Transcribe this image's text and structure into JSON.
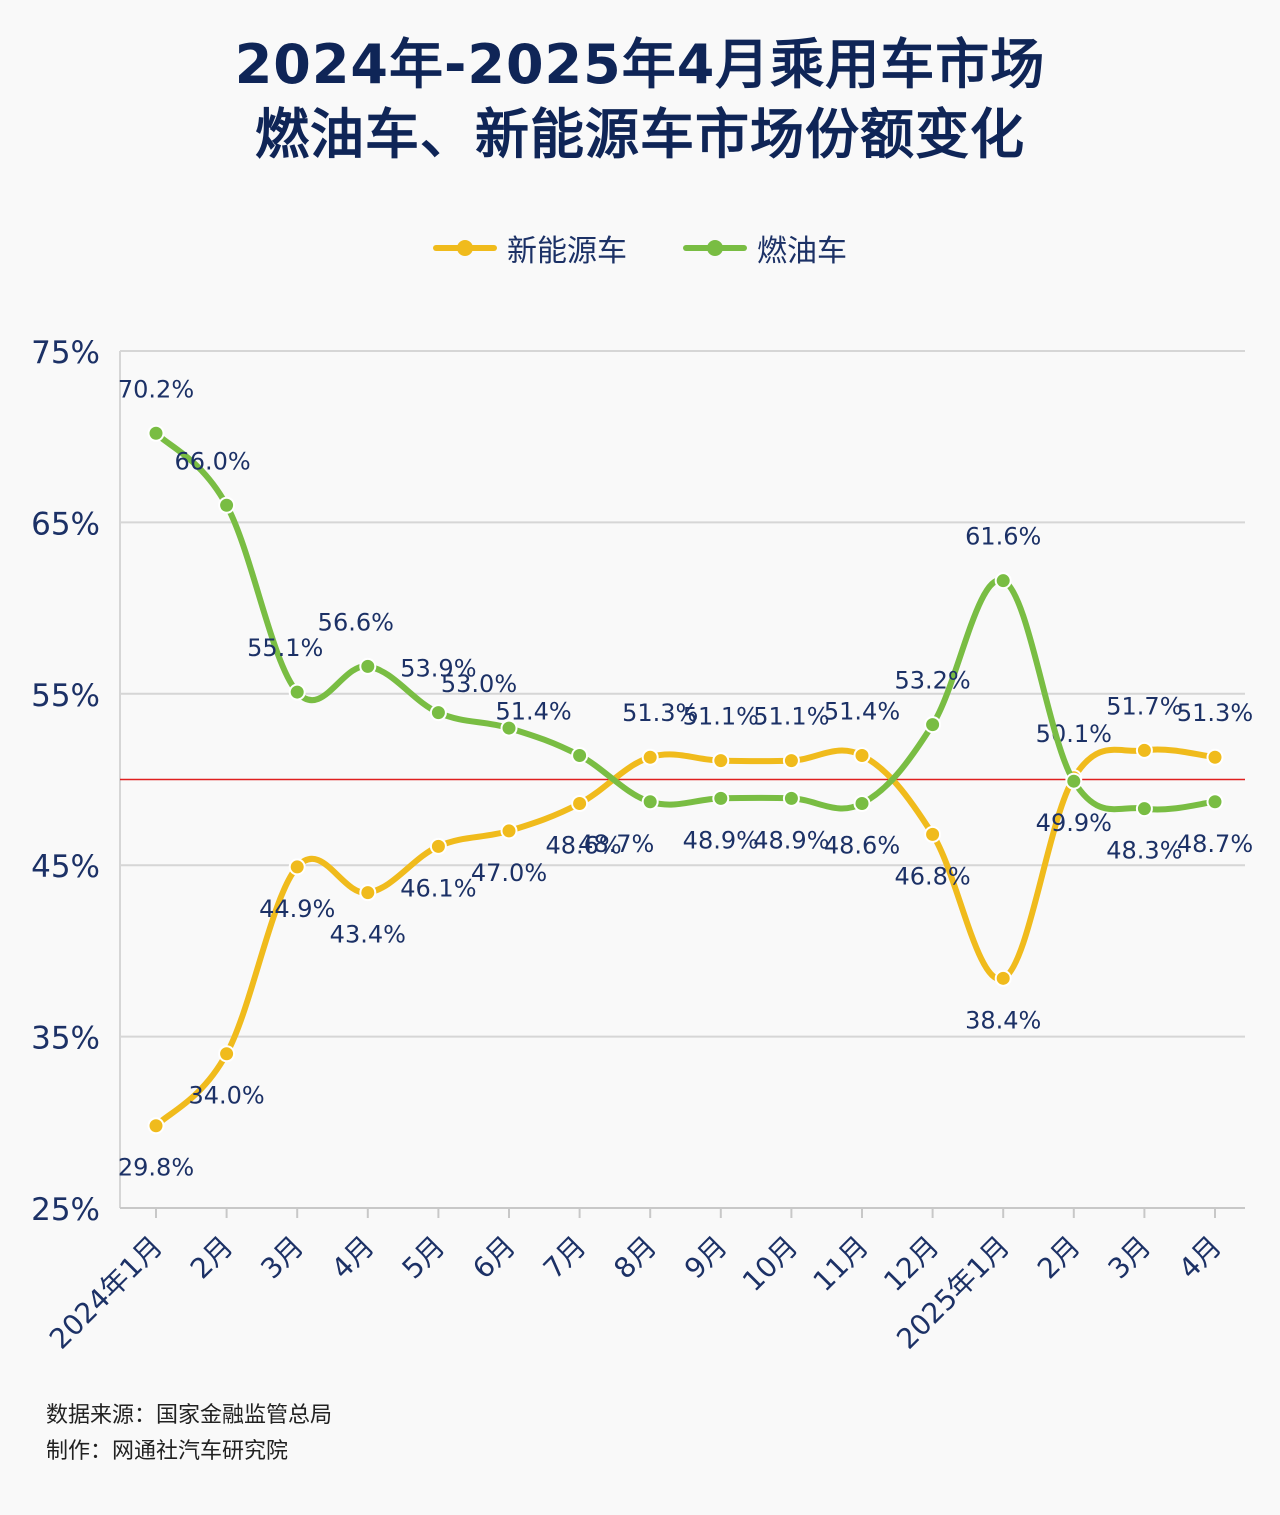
{
  "title": {
    "line1": "2024年-2025年4月乘用车市场",
    "line2": "燃油车、新能源车市场份额变化"
  },
  "colors": {
    "title": "#0f2557",
    "axis_text": "#1c3166",
    "nev": "#f0bb1c",
    "ice": "#79bd43",
    "reference": "#e02020",
    "grid": "#d6d6d6"
  },
  "chart_data": {
    "type": "line",
    "categories": [
      "2024年1月",
      "2月",
      "3月",
      "4月",
      "5月",
      "6月",
      "7月",
      "8月",
      "9月",
      "10月",
      "11月",
      "12月",
      "2025年1月",
      "2月",
      "3月",
      "4月"
    ],
    "series": [
      {
        "name": "新能源车",
        "color": "#f0bb1c",
        "values": [
          29.8,
          34.0,
          44.9,
          43.4,
          46.1,
          47.0,
          48.6,
          51.3,
          51.1,
          51.1,
          51.4,
          46.8,
          38.4,
          50.1,
          51.7,
          51.3
        ],
        "labels": [
          "29.8%",
          "34.0%",
          "44.9%",
          "43.4%",
          "46.1%",
          "47.0%",
          "48.6%",
          "51.3%",
          "51.1%",
          "51.1%",
          "51.4%",
          "46.8%",
          "38.4%",
          "50.1%",
          "51.7%",
          "51.3%"
        ]
      },
      {
        "name": "燃油车",
        "color": "#79bd43",
        "values": [
          70.2,
          66.0,
          55.1,
          56.6,
          53.9,
          53.0,
          51.4,
          48.7,
          48.9,
          48.9,
          48.6,
          53.2,
          61.6,
          49.9,
          48.3,
          48.7
        ],
        "labels": [
          "70.2%",
          "66.0%",
          "55.1%",
          "56.6%",
          "53.9%",
          "53.0%",
          "51.4%",
          "48.7%",
          "48.9%",
          "48.9%",
          "48.6%",
          "53.2%",
          "61.6%",
          "49.9%",
          "48.3%",
          "48.7%"
        ]
      }
    ],
    "y_ticks": [
      "25%",
      "35%",
      "45%",
      "55%",
      "65%",
      "75%"
    ],
    "y_tick_values": [
      25,
      35,
      45,
      55,
      65,
      75
    ],
    "ylim": [
      25,
      75
    ],
    "reference_line": 50,
    "grid": true,
    "legend_position": "top-center"
  },
  "footer": {
    "source": "数据来源：国家金融监管总局",
    "author": "制作：网通社汽车研究院"
  }
}
